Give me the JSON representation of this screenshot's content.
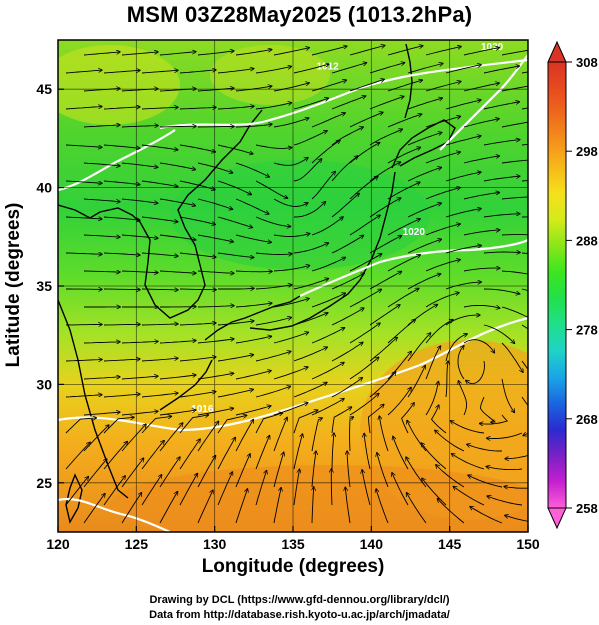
{
  "title": "MSM 03Z28May2025 (1013.2hPa)",
  "x_axis": {
    "label": "Longitude (degrees)",
    "range": [
      120,
      150
    ],
    "ticks": [
      120,
      125,
      130,
      135,
      140,
      145,
      150
    ]
  },
  "y_axis": {
    "label": "Latitude  (degrees)",
    "range": [
      22.5,
      47.5
    ],
    "ticks": [
      25,
      30,
      35,
      40,
      45
    ]
  },
  "colorbar": {
    "min": 258,
    "max": 308,
    "ticks": [
      258,
      268,
      278,
      288,
      298,
      308
    ],
    "colors": [
      "#ff5fd7",
      "#c51fd0",
      "#7a20c6",
      "#2b2bd0",
      "#1a66e0",
      "#19a6e6",
      "#1fd3c6",
      "#1fe08a",
      "#23e04a",
      "#3ce61e",
      "#8ae61a",
      "#d5ea1a",
      "#f5e01c",
      "#f7b81a",
      "#f4901a",
      "#ef6a1c",
      "#e74a1f",
      "#d93425"
    ]
  },
  "contour_labels": [
    {
      "text": "1020",
      "lon": 142.0,
      "lat": 37.6
    },
    {
      "text": "1016",
      "lon": 128.5,
      "lat": 28.6
    },
    {
      "text": "1012",
      "lon": 136.5,
      "lat": 46.0
    },
    {
      "text": "1020",
      "lon": 147.0,
      "lat": 47.0
    }
  ],
  "credits": [
    "Drawing by DCL (https://www.gfd-dennou.org/library/dcl/)",
    "Data from http://database.rish.kyoto-u.ac.jp/arch/jmadata/"
  ],
  "colors": {
    "field_warm": "#f0a21c",
    "field_mid": "#9ee02a",
    "field_cool": "#2fd33a",
    "isobar": "#ffffff",
    "streamline": "#000000"
  }
}
